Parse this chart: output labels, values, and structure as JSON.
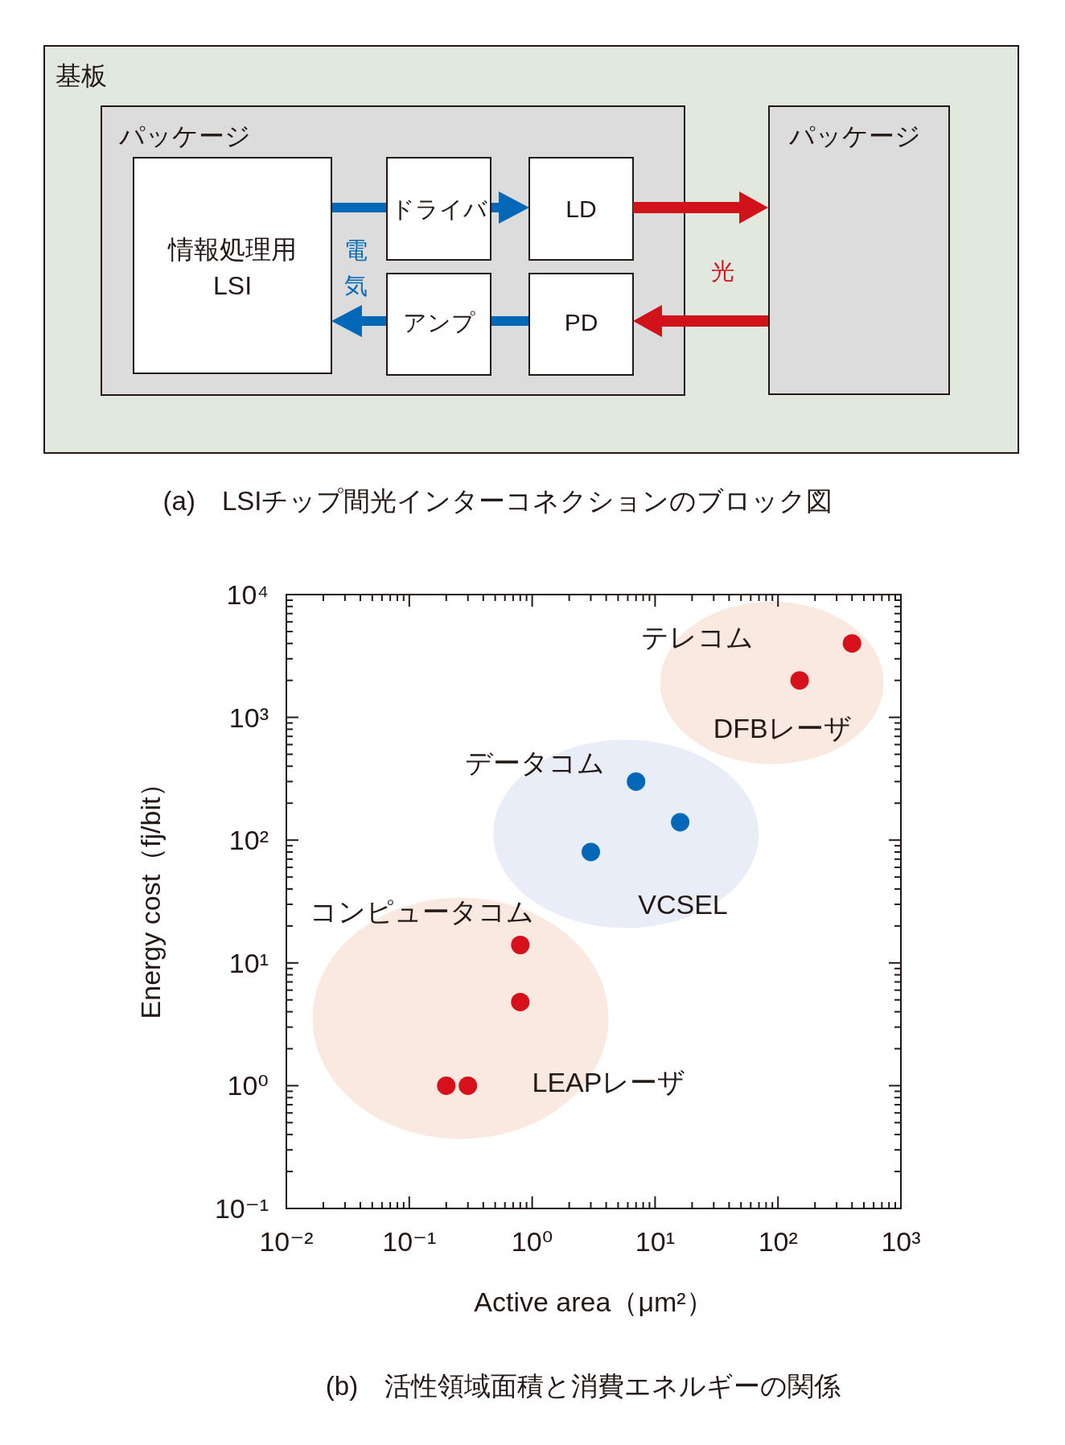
{
  "chart_data": [
    {
      "type": "other",
      "title": "(a)　LSIチップ間光インターコネクションのブロック図",
      "annotations": [
        "基板",
        "パッケージ",
        "パッケージ",
        "情報処理用\nLSI",
        "ドライバ",
        "LD",
        "アンプ",
        "PD",
        "電気",
        "光"
      ]
    },
    {
      "type": "scatter",
      "title": "(b)　活性領域面積と消費エネルギーの関係",
      "xlabel": "Active area（μm²）",
      "ylabel": "Energy cost（fj/bit）",
      "log": "xy",
      "xlim": [
        0.01,
        1000
      ],
      "ylim": [
        0.1,
        10000
      ],
      "xticks": [
        {
          "value": 0.01,
          "label": "10⁻²"
        },
        {
          "value": 0.1,
          "label": "10⁻¹"
        },
        {
          "value": 1,
          "label": "10⁰"
        },
        {
          "value": 10,
          "label": "10¹"
        },
        {
          "value": 100,
          "label": "10²"
        },
        {
          "value": 1000,
          "label": "10³"
        }
      ],
      "yticks": [
        {
          "value": 0.1,
          "label": "10⁻¹"
        },
        {
          "value": 1,
          "label": "10⁰"
        },
        {
          "value": 10,
          "label": "10¹"
        },
        {
          "value": 100,
          "label": "10²"
        },
        {
          "value": 1000,
          "label": "10³"
        },
        {
          "value": 10000,
          "label": "10⁴"
        }
      ],
      "marker": "circle",
      "series": [
        {
          "name": "DFBレーザ",
          "color": "#d7111b",
          "x": [
            400,
            150
          ],
          "values": [
            4000,
            2000
          ]
        },
        {
          "name": "VCSEL",
          "color": "#0068b7",
          "x": [
            7,
            16,
            3
          ],
          "values": [
            300,
            140,
            80
          ]
        },
        {
          "name": "LEAPレーザ",
          "color": "#d7111b",
          "x": [
            0.8,
            0.8,
            0.2,
            0.3
          ],
          "values": [
            14,
            4.8,
            1,
            1
          ]
        }
      ],
      "annotations": [
        "テレコム",
        "データコム",
        "コンピュータコム"
      ]
    }
  ]
}
